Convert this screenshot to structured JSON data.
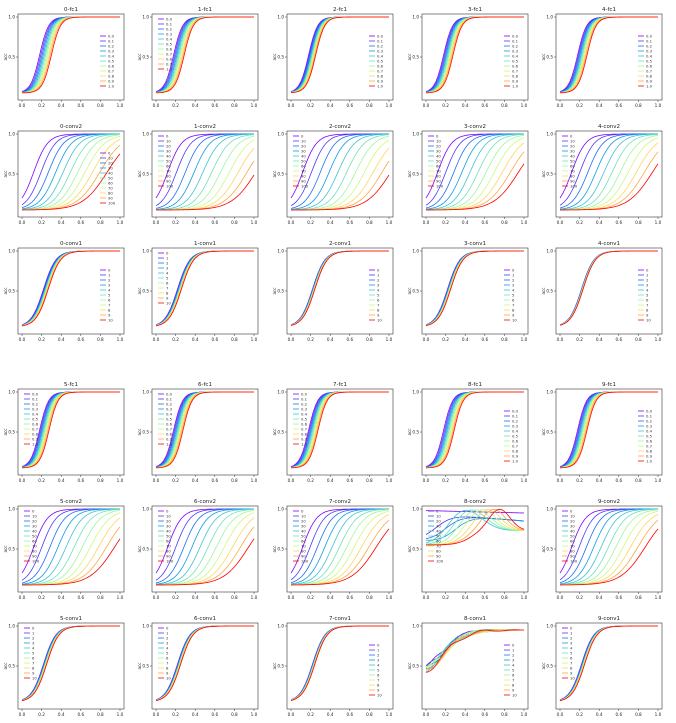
{
  "figure": {
    "panels": [
      {
        "title": "0-fc1",
        "kind": "prob",
        "spread": 1.0,
        "ylabel": "acc",
        "xticks": [
          "0.0",
          "0.2",
          "0.4",
          "0.6",
          "0.8",
          "1.0"
        ],
        "yticks": [
          "0.5",
          "1.0"
        ],
        "legend": "right"
      },
      {
        "title": "1-fc1",
        "kind": "prob",
        "spread": 0.9,
        "ylabel": "acc",
        "xticks": [
          "0.0",
          "0.2",
          "0.4",
          "0.6",
          "0.8",
          "1.0"
        ],
        "yticks": [
          "0.5",
          "1.0"
        ],
        "legend": "left"
      },
      {
        "title": "2-fc1",
        "kind": "prob",
        "spread": 0.6,
        "ylabel": "acc",
        "xticks": [
          "0.0",
          "0.2",
          "0.4",
          "0.6",
          "0.8",
          "1.0"
        ],
        "yticks": [
          "0.5",
          "1.0"
        ],
        "legend": "right"
      },
      {
        "title": "3-fc1",
        "kind": "prob",
        "spread": 0.8,
        "ylabel": "acc",
        "xticks": [
          "0.0",
          "0.2",
          "0.4",
          "0.6",
          "0.8",
          "1.0"
        ],
        "yticks": [
          "0.5",
          "1.0"
        ],
        "legend": "right"
      },
      {
        "title": "4-fc1",
        "kind": "prob",
        "spread": 0.8,
        "ylabel": "acc",
        "xticks": [
          "0.0",
          "0.2",
          "0.4",
          "0.6",
          "0.8",
          "1.0"
        ],
        "yticks": [
          "0.5",
          "1.0"
        ],
        "legend": "right"
      },
      {
        "title": "0-conv2",
        "kind": "pct",
        "spread": 1.0,
        "ylabel": "acc",
        "xticks": [
          "0.0",
          "0.2",
          "0.4",
          "0.6",
          "0.8",
          "1.0"
        ],
        "yticks": [
          "0.5",
          "1.0"
        ],
        "legend": "right"
      },
      {
        "title": "1-conv2",
        "kind": "pct",
        "spread": 1.2,
        "ylabel": "acc",
        "xticks": [
          "0.0",
          "0.2",
          "0.4",
          "0.6",
          "0.8",
          "1.0"
        ],
        "yticks": [
          "0.5",
          "1.0"
        ],
        "legend": "left"
      },
      {
        "title": "2-conv2",
        "kind": "pct",
        "spread": 1.2,
        "ylabel": "acc",
        "xticks": [
          "0.0",
          "0.2",
          "0.4",
          "0.6",
          "0.8",
          "1.0"
        ],
        "yticks": [
          "0.5",
          "1.0"
        ],
        "legend": "left"
      },
      {
        "title": "3-conv2",
        "kind": "pct",
        "spread": 1.1,
        "ylabel": "acc",
        "xticks": [
          "0.0",
          "0.2",
          "0.4",
          "0.6",
          "0.8",
          "1.0"
        ],
        "yticks": [
          "0.5",
          "1.0"
        ],
        "legend": "left"
      },
      {
        "title": "4-conv2",
        "kind": "pct",
        "spread": 1.1,
        "ylabel": "acc",
        "xticks": [
          "0.0",
          "0.2",
          "0.4",
          "0.6",
          "0.8",
          "1.0"
        ],
        "yticks": [
          "0.5",
          "1.0"
        ],
        "legend": "left"
      },
      {
        "title": "0-conv1",
        "kind": "int",
        "spread": 0.6,
        "ylabel": "acc",
        "xticks": [
          "0.0",
          "0.2",
          "0.4",
          "0.6",
          "0.8",
          "1.0"
        ],
        "yticks": [
          "0.5",
          "1.0"
        ],
        "legend": "right"
      },
      {
        "title": "1-conv1",
        "kind": "int",
        "spread": 0.5,
        "ylabel": "acc",
        "xticks": [
          "0.0",
          "0.2",
          "0.4",
          "0.6",
          "0.8",
          "1.0"
        ],
        "yticks": [
          "0.5",
          "1.0"
        ],
        "legend": "left"
      },
      {
        "title": "2-conv1",
        "kind": "int",
        "spread": 0.3,
        "ylabel": "acc",
        "xticks": [
          "0.0",
          "0.2",
          "0.4",
          "0.6",
          "0.8",
          "1.0"
        ],
        "yticks": [
          "0.5",
          "1.0"
        ],
        "legend": "right"
      },
      {
        "title": "3-conv1",
        "kind": "int",
        "spread": 0.4,
        "ylabel": "acc",
        "xticks": [
          "0.0",
          "0.2",
          "0.4",
          "0.6",
          "0.8",
          "1.0"
        ],
        "yticks": [
          "0.5",
          "1.0"
        ],
        "legend": "right"
      },
      {
        "title": "4-conv1",
        "kind": "int",
        "spread": 0.2,
        "ylabel": "acc",
        "xticks": [
          "0.0",
          "0.2",
          "0.4",
          "0.6",
          "0.8",
          "1.0"
        ],
        "yticks": [
          "0.5",
          "1.0"
        ],
        "legend": "right"
      },
      {
        "title": "5-fc1",
        "kind": "prob",
        "spread": 0.8,
        "ylabel": "acc",
        "xticks": [
          "0.0",
          "0.2",
          "0.4",
          "0.6",
          "0.8",
          "1.0"
        ],
        "yticks": [
          "0.5",
          "1.0"
        ],
        "legend": "left"
      },
      {
        "title": "6-fc1",
        "kind": "prob",
        "spread": 0.8,
        "ylabel": "acc",
        "xticks": [
          "0.0",
          "0.2",
          "0.4",
          "0.6",
          "0.8",
          "1.0"
        ],
        "yticks": [
          "0.5",
          "1.0"
        ],
        "legend": "left"
      },
      {
        "title": "7-fc1",
        "kind": "prob",
        "spread": 0.8,
        "ylabel": "acc",
        "xticks": [
          "0.0",
          "0.2",
          "0.4",
          "0.6",
          "0.8",
          "1.0"
        ],
        "yticks": [
          "0.5",
          "1.0"
        ],
        "legend": "left"
      },
      {
        "title": "8-fc1",
        "kind": "prob",
        "spread": 0.9,
        "ylabel": "acc",
        "xticks": [
          "0.0",
          "0.2",
          "0.4",
          "0.6",
          "0.8",
          "1.0"
        ],
        "yticks": [
          "0.5",
          "1.0"
        ],
        "legend": "right"
      },
      {
        "title": "9-fc1",
        "kind": "prob",
        "spread": 0.8,
        "ylabel": "acc",
        "xticks": [
          "0.0",
          "0.2",
          "0.4",
          "0.6",
          "0.8",
          "1.0"
        ],
        "yticks": [
          "0.5",
          "1.0"
        ],
        "legend": "right"
      },
      {
        "title": "5-conv2",
        "kind": "pct",
        "spread": 1.1,
        "ylabel": "acc",
        "xticks": [
          "0.0",
          "0.2",
          "0.4",
          "0.6",
          "0.8",
          "1.0"
        ],
        "yticks": [
          "0.5",
          "1.0"
        ],
        "legend": "left"
      },
      {
        "title": "6-conv2",
        "kind": "pct",
        "spread": 1.1,
        "ylabel": "acc",
        "xticks": [
          "0.0",
          "0.2",
          "0.4",
          "0.6",
          "0.8",
          "1.0"
        ],
        "yticks": [
          "0.5",
          "1.0"
        ],
        "legend": "left"
      },
      {
        "title": "7-conv2",
        "kind": "pct",
        "spread": 1.0,
        "ylabel": "acc",
        "xticks": [
          "0.0",
          "0.2",
          "0.4",
          "0.6",
          "0.8",
          "1.0"
        ],
        "yticks": [
          "0.5",
          "1.0"
        ],
        "legend": "left"
      },
      {
        "title": "8-conv2",
        "kind": "pct",
        "spread": 1.0,
        "ylabel": "acc",
        "xticks": [
          "0.0",
          "0.2",
          "0.4",
          "0.6",
          "0.8",
          "1.0"
        ],
        "yticks": [
          "0.5",
          "1.0"
        ],
        "legend": "left",
        "special": "8-conv2"
      },
      {
        "title": "9-conv2",
        "kind": "pct",
        "spread": 1.0,
        "ylabel": "acc",
        "xticks": [
          "0.0",
          "0.2",
          "0.4",
          "0.6",
          "0.8",
          "1.0"
        ],
        "yticks": [
          "0.5",
          "1.0"
        ],
        "legend": "left"
      },
      {
        "title": "5-conv1",
        "kind": "int",
        "spread": 0.4,
        "ylabel": "acc",
        "xticks": [
          "0.0",
          "0.2",
          "0.4",
          "0.6",
          "0.8",
          "1.0"
        ],
        "yticks": [
          "0.5",
          "1.0"
        ],
        "legend": "left"
      },
      {
        "title": "6-conv1",
        "kind": "int",
        "spread": 0.4,
        "ylabel": "acc",
        "xticks": [
          "0.0",
          "0.2",
          "0.4",
          "0.6",
          "0.8",
          "1.0"
        ],
        "yticks": [
          "0.5",
          "1.0"
        ],
        "legend": "left"
      },
      {
        "title": "7-conv1",
        "kind": "int",
        "spread": 0.3,
        "ylabel": "acc",
        "xticks": [
          "0.0",
          "0.2",
          "0.4",
          "0.6",
          "0.8",
          "1.0"
        ],
        "yticks": [
          "0.5",
          "1.0"
        ],
        "legend": "right"
      },
      {
        "title": "8-conv1",
        "kind": "int",
        "spread": 0.5,
        "ylabel": "acc",
        "xticks": [
          "0.0",
          "0.2",
          "0.4",
          "0.6",
          "0.8",
          "1.0"
        ],
        "yticks": [
          "0.5",
          "1.0"
        ],
        "legend": "right",
        "special": "8-conv1"
      },
      {
        "title": "9-conv1",
        "kind": "int",
        "spread": 0.4,
        "ylabel": "acc",
        "xticks": [
          "0.0",
          "0.2",
          "0.4",
          "0.6",
          "0.8",
          "1.0"
        ],
        "yticks": [
          "0.5",
          "1.0"
        ],
        "legend": "left"
      }
    ],
    "legend_sets": {
      "prob": [
        "0.0",
        "0.1",
        "0.2",
        "0.3",
        "0.4",
        "0.5",
        "0.6",
        "0.7",
        "0.8",
        "0.9",
        "1.0"
      ],
      "pct": [
        "0",
        "10",
        "20",
        "30",
        "40",
        "50",
        "60",
        "70",
        "80",
        "90",
        "100"
      ],
      "int": [
        "0",
        "1",
        "2",
        "3",
        "4",
        "5",
        "6",
        "7",
        "8",
        "9",
        "10"
      ]
    },
    "series_colors": [
      "#7f00ff",
      "#4f39f9",
      "#1e6cf2",
      "#119ce4",
      "#40c3d0",
      "#6fe2b8",
      "#9ef79c",
      "#cdf97e",
      "#ffd55e",
      "#ffa63c",
      "#ff0000"
    ]
  },
  "chart_data": {
    "type": "line",
    "description_of_series": "Each panel has 11 series (legend values) of accuracy vs x in [0,1].",
    "ylim": [
      0.0,
      1.0
    ],
    "xlim": [
      0.0,
      1.0
    ],
    "panels_ref": "figure.panels"
  }
}
